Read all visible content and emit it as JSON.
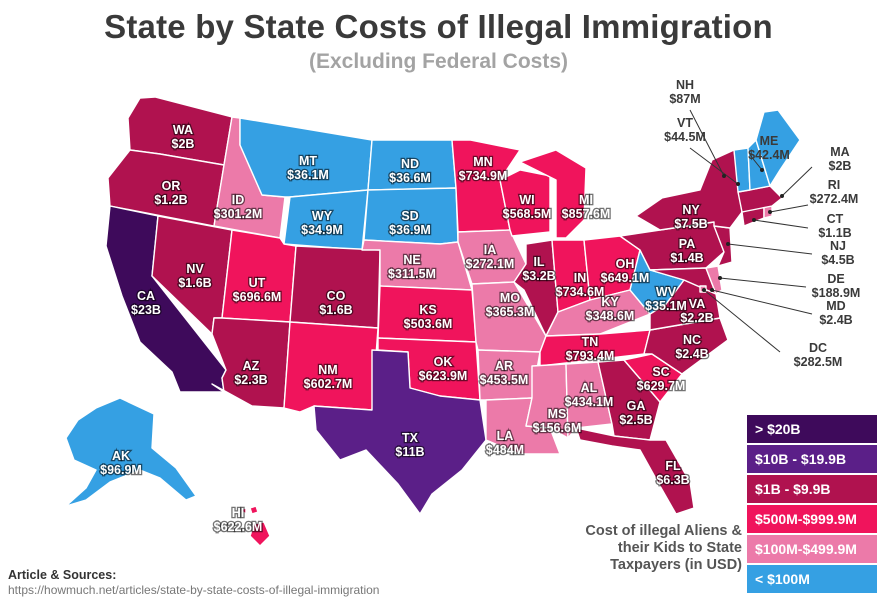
{
  "header": {
    "title": "State by State Costs of Illegal Immigration",
    "subtitle": "(Excluding Federal Costs)"
  },
  "colors": {
    "tier1": "#3e0a5b",
    "tier2": "#5b1f88",
    "tier3": "#b0124f",
    "tier4": "#f0145c",
    "tier5": "#ec7aa9",
    "tier6": "#35a0e3"
  },
  "legend": {
    "items": [
      {
        "label": "> $20B",
        "color": "#3e0a5b"
      },
      {
        "label": "$10B - $19.9B",
        "color": "#5b1f88"
      },
      {
        "label": "$1B - $9.9B",
        "color": "#b0124f"
      },
      {
        "label": "$500M-$999.9M",
        "color": "#f0145c"
      },
      {
        "label": "$100M-$499.9M",
        "color": "#ec7aa9"
      },
      {
        "label": "< $100M",
        "color": "#35a0e3"
      }
    ],
    "caption": "Cost of illegal Aliens & their Kids to State Taxpayers (in USD)"
  },
  "states": {
    "WA": {
      "abbr": "WA",
      "value": "$2B",
      "tier": 3
    },
    "OR": {
      "abbr": "OR",
      "value": "$1.2B",
      "tier": 3
    },
    "CA": {
      "abbr": "CA",
      "value": "$23B",
      "tier": 1
    },
    "ID": {
      "abbr": "ID",
      "value": "$301.2M",
      "tier": 5
    },
    "NV": {
      "abbr": "NV",
      "value": "$1.6B",
      "tier": 3
    },
    "MT": {
      "abbr": "MT",
      "value": "$36.1M",
      "tier": 6
    },
    "WY": {
      "abbr": "WY",
      "value": "$34.9M",
      "tier": 6
    },
    "UT": {
      "abbr": "UT",
      "value": "$696.6M",
      "tier": 4
    },
    "AZ": {
      "abbr": "AZ",
      "value": "$2.3B",
      "tier": 3
    },
    "CO": {
      "abbr": "CO",
      "value": "$1.6B",
      "tier": 3
    },
    "NM": {
      "abbr": "NM",
      "value": "$602.7M",
      "tier": 4
    },
    "ND": {
      "abbr": "ND",
      "value": "$36.6M",
      "tier": 6
    },
    "SD": {
      "abbr": "SD",
      "value": "$36.9M",
      "tier": 6
    },
    "NE": {
      "abbr": "NE",
      "value": "$311.5M",
      "tier": 5
    },
    "KS": {
      "abbr": "KS",
      "value": "$503.6M",
      "tier": 4
    },
    "OK": {
      "abbr": "OK",
      "value": "$623.9M",
      "tier": 4
    },
    "TX": {
      "abbr": "TX",
      "value": "$11B",
      "tier": 2
    },
    "MN": {
      "abbr": "MN",
      "value": "$734.9M",
      "tier": 4
    },
    "IA": {
      "abbr": "IA",
      "value": "$272.1M",
      "tier": 5
    },
    "MO": {
      "abbr": "MO",
      "value": "$365.3M",
      "tier": 5
    },
    "AR": {
      "abbr": "AR",
      "value": "$453.5M",
      "tier": 5
    },
    "LA": {
      "abbr": "LA",
      "value": "$484M",
      "tier": 5
    },
    "WI": {
      "abbr": "WI",
      "value": "$568.5M",
      "tier": 4
    },
    "IL": {
      "abbr": "IL",
      "value": "$3.2B",
      "tier": 3
    },
    "MI": {
      "abbr": "MI",
      "value": "$857.6M",
      "tier": 4
    },
    "IN": {
      "abbr": "IN",
      "value": "$734.6M",
      "tier": 4
    },
    "OH": {
      "abbr": "OH",
      "value": "$649.1M",
      "tier": 4
    },
    "KY": {
      "abbr": "KY",
      "value": "$348.6M",
      "tier": 5
    },
    "TN": {
      "abbr": "TN",
      "value": "$793.4M",
      "tier": 4
    },
    "MS": {
      "abbr": "MS",
      "value": "$156.6M",
      "tier": 5
    },
    "AL": {
      "abbr": "AL",
      "value": "$434.1M",
      "tier": 5
    },
    "GA": {
      "abbr": "GA",
      "value": "$2.5B",
      "tier": 3
    },
    "FL": {
      "abbr": "FL",
      "value": "$6.3B",
      "tier": 3
    },
    "SC": {
      "abbr": "SC",
      "value": "$629.7M",
      "tier": 4
    },
    "NC": {
      "abbr": "NC",
      "value": "$2.4B",
      "tier": 3
    },
    "VA": {
      "abbr": "VA",
      "value": "$2.2B",
      "tier": 3
    },
    "WV": {
      "abbr": "WV",
      "value": "$35.1M",
      "tier": 6
    },
    "PA": {
      "abbr": "PA",
      "value": "$1.4B",
      "tier": 3
    },
    "NY": {
      "abbr": "NY",
      "value": "$7.5B",
      "tier": 3
    },
    "VT": {
      "abbr": "VT",
      "value": "$44.5M",
      "tier": 6
    },
    "NH": {
      "abbr": "NH",
      "value": "$87M",
      "tier": 6
    },
    "ME": {
      "abbr": "ME",
      "value": "$42.4M",
      "tier": 6
    },
    "MA": {
      "abbr": "MA",
      "value": "$2B",
      "tier": 3
    },
    "RI": {
      "abbr": "RI",
      "value": "$272.4M",
      "tier": 5
    },
    "CT": {
      "abbr": "CT",
      "value": "$1.1B",
      "tier": 3
    },
    "NJ": {
      "abbr": "NJ",
      "value": "$4.5B",
      "tier": 3
    },
    "DE": {
      "abbr": "DE",
      "value": "$188.9M",
      "tier": 5
    },
    "MD": {
      "abbr": "MD",
      "value": "$2.4B",
      "tier": 3
    },
    "DC": {
      "abbr": "DC",
      "value": "$282.5M",
      "tier": 5
    },
    "AK": {
      "abbr": "AK",
      "value": "$96.9M",
      "tier": 6
    },
    "HI": {
      "abbr": "HI",
      "value": "$622.6M",
      "tier": 4
    }
  },
  "footer": {
    "sources_label": "Article & Sources:",
    "sources_url": "https://howmuch.net/articles/state-by-state-costs-of-illegal-immigration"
  }
}
